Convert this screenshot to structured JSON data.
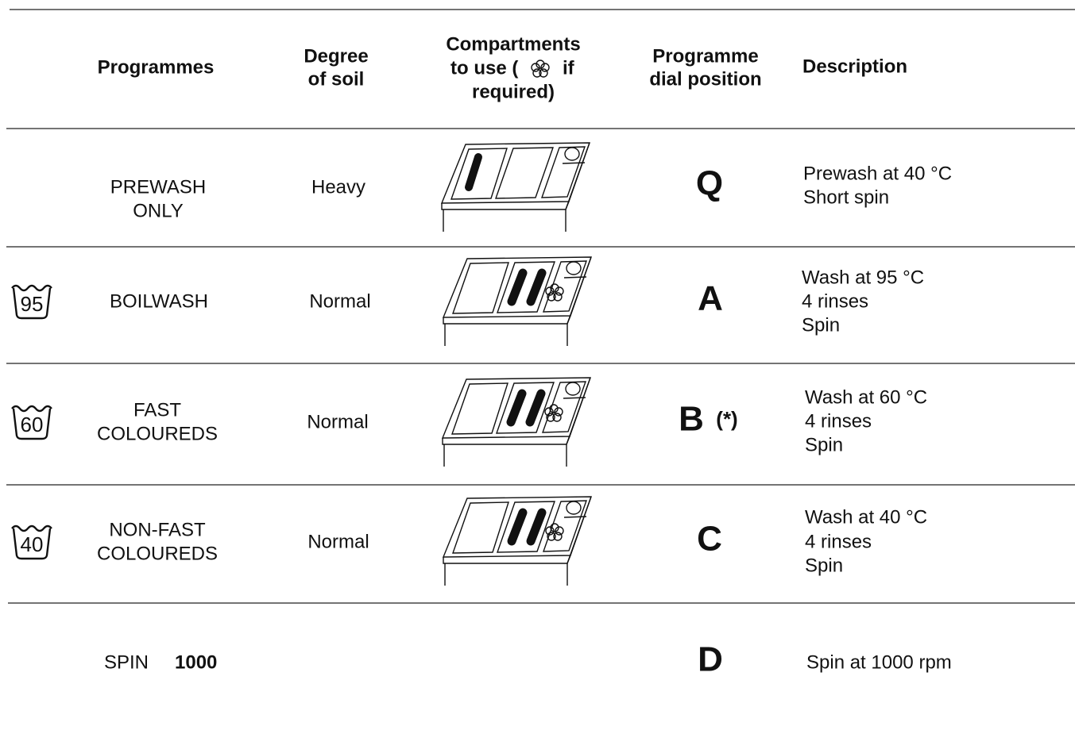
{
  "header": {
    "programmes": "Programmes",
    "degree_of_soil": [
      "Degree",
      "of soil"
    ],
    "compartments": [
      "Compartments",
      "to use (",
      "if",
      "required)"
    ],
    "dial_position": [
      "Programme",
      "dial position"
    ],
    "description": "Description"
  },
  "rows": [
    {
      "programme": [
        "PREWASH",
        "ONLY"
      ],
      "soil": "Heavy",
      "dial": "Q",
      "description": [
        "Prewash at 40 °C",
        "Short spin"
      ]
    },
    {
      "symbol": "95",
      "programme": [
        "BOILWASH"
      ],
      "soil": "Normal",
      "dial": "A",
      "description": [
        "Wash at 95 °C",
        "4 rinses",
        "Spin"
      ]
    },
    {
      "symbol": "60",
      "programme": [
        "FAST",
        "COLOUREDS"
      ],
      "soil": "Normal",
      "dial": "B",
      "dial_note": "(*)",
      "description": [
        "Wash at 60 °C",
        "4 rinses",
        "Spin"
      ]
    },
    {
      "symbol": "40",
      "programme": [
        "NON-FAST",
        "COLOUREDS"
      ],
      "soil": "Normal",
      "dial": "C",
      "description": [
        "Wash at 40 °C",
        "4 rinses",
        "Spin"
      ]
    },
    {
      "programme": [
        "SPIN"
      ],
      "speed": "1000",
      "dial": "D",
      "description": [
        "Spin at 1000 rpm"
      ]
    }
  ]
}
